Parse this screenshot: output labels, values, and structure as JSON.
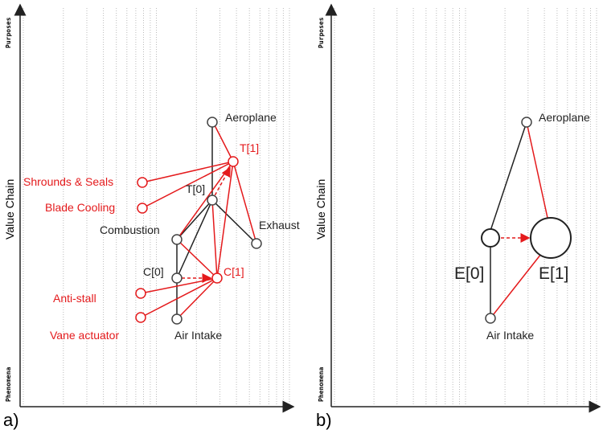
{
  "colors": {
    "black": "#222222",
    "red": "#e41a1c",
    "grid": "#bbbbbb"
  },
  "panel_a": {
    "label": "a)",
    "y_axis_label": "Value Chain",
    "y_top": "Purposes",
    "y_bottom": "Phenomena",
    "nodes": {
      "aeroplane": "Aeroplane",
      "t1": "T[1]",
      "t0": "T[0]",
      "exhaust": "Exhaust",
      "combustion": "Combustion",
      "c0": "C[0]",
      "c1": "C[1]",
      "air_intake": "Air Intake",
      "shrouds": "Shrounds & Seals",
      "blade": "Blade Cooling",
      "antistall": "Anti-stall",
      "vane": "Vane actuator"
    }
  },
  "panel_b": {
    "label": "b)",
    "y_axis_label": "Value Chain",
    "y_top": "Purposes",
    "y_bottom": "Phenomena",
    "nodes": {
      "aeroplane": "Aeroplane",
      "e0": "E[0]",
      "e1": "E[1]",
      "air_intake": "Air Intake"
    }
  }
}
